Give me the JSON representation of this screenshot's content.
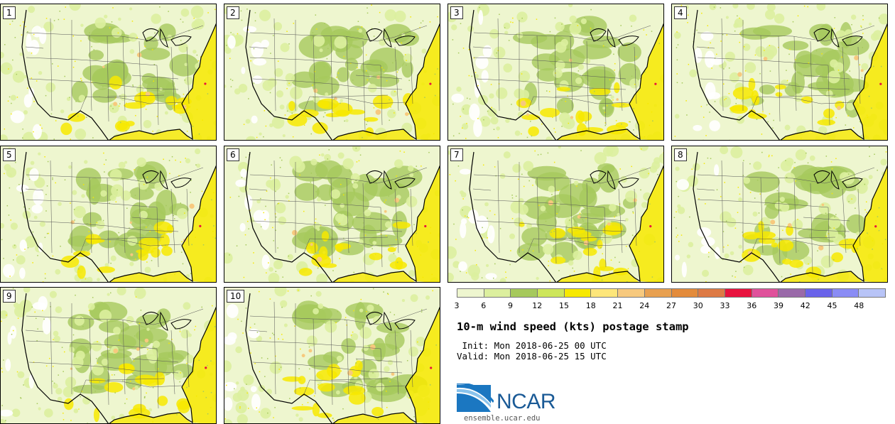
{
  "figure": {
    "title": "10-m wind speed (kts) postage stamp",
    "init_text": " Init: Mon 2018-06-25 00 UTC",
    "valid_text": "Valid: Mon 2018-06-25 15 UTC",
    "url": "ensemble.ucar.edu",
    "logo_text": "NCAR"
  },
  "members": [
    {
      "label": "1"
    },
    {
      "label": "2"
    },
    {
      "label": "3"
    },
    {
      "label": "4"
    },
    {
      "label": "5"
    },
    {
      "label": "6"
    },
    {
      "label": "7"
    },
    {
      "label": "8"
    },
    {
      "label": "9"
    },
    {
      "label": "10"
    }
  ],
  "colorbar": {
    "ticks": [
      "3",
      "6",
      "9",
      "12",
      "15",
      "18",
      "21",
      "24",
      "27",
      "30",
      "33",
      "36",
      "39",
      "42",
      "45",
      "48"
    ],
    "colors": [
      "#eef6cf",
      "#dcef9e",
      "#a6c95c",
      "#cde65a",
      "#f7e900",
      "#fde67a",
      "#f7c97e",
      "#e8a050",
      "#e38b3b",
      "#dd7a45",
      "#e8123e",
      "#e0519b",
      "#9a6aa9",
      "#6a63ea",
      "#8a8cf5",
      "#b8c4f7"
    ]
  },
  "map_colors": {
    "background": "#eef6cf",
    "light": "#dcef9e",
    "green": "#a6c95c",
    "yellow": "#f7e900",
    "orange": "#f7c97e",
    "red": "#e8123e",
    "white": "#ffffff",
    "border_line": "#555555",
    "coast_line": "#000000"
  }
}
